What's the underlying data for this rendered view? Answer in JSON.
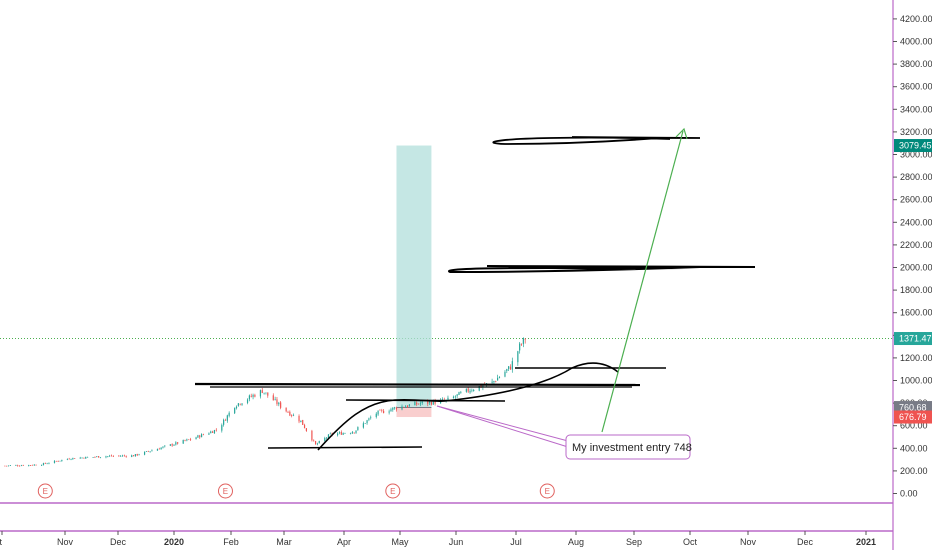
{
  "chart_data": {
    "type": "candlestick",
    "title": "",
    "xlabel": "",
    "ylabel": "",
    "ylim": [
      -100,
      4300
    ],
    "y_ticks": [
      "0.00",
      "200.00",
      "400.00",
      "600.00",
      "800.00",
      "1000.00",
      "1200.00",
      "1400.00",
      "1600.00",
      "1800.00",
      "2000.00",
      "2200.00",
      "2400.00",
      "2600.00",
      "2800.00",
      "3000.00",
      "3200.00",
      "3400.00",
      "3600.00",
      "3800.00",
      "4000.00",
      "4200.00"
    ],
    "x_ticks": [
      {
        "label": "Oct",
        "bold": false
      },
      {
        "label": "Nov",
        "bold": false
      },
      {
        "label": "Dec",
        "bold": false
      },
      {
        "label": "2020",
        "bold": true
      },
      {
        "label": "Feb",
        "bold": false
      },
      {
        "label": "Mar",
        "bold": false
      },
      {
        "label": "Apr",
        "bold": false
      },
      {
        "label": "May",
        "bold": false
      },
      {
        "label": "Jun",
        "bold": false
      },
      {
        "label": "Jul",
        "bold": false
      },
      {
        "label": "Aug",
        "bold": false
      },
      {
        "label": "Sep",
        "bold": false
      },
      {
        "label": "Oct",
        "bold": false
      },
      {
        "label": "Nov",
        "bold": false
      },
      {
        "label": "Dec",
        "bold": false
      },
      {
        "label": "2021",
        "bold": true
      }
    ],
    "price_path": [
      [
        "2019-10-01",
        245
      ],
      [
        "2019-10-20",
        255
      ],
      [
        "2019-11-05",
        310
      ],
      [
        "2019-11-25",
        330
      ],
      [
        "2019-12-10",
        335
      ],
      [
        "2019-12-25",
        405
      ],
      [
        "2020-01-10",
        480
      ],
      [
        "2020-01-25",
        570
      ],
      [
        "2020-02-03",
        780
      ],
      [
        "2020-02-18",
        910
      ],
      [
        "2020-03-01",
        745
      ],
      [
        "2020-03-10",
        640
      ],
      [
        "2020-03-18",
        430
      ],
      [
        "2020-03-26",
        520
      ],
      [
        "2020-04-08",
        550
      ],
      [
        "2020-04-20",
        710
      ],
      [
        "2020-05-01",
        760
      ],
      [
        "2020-05-15",
        800
      ],
      [
        "2020-05-28",
        820
      ],
      [
        "2020-06-10",
        920
      ],
      [
        "2020-06-22",
        980
      ],
      [
        "2020-07-02",
        1120
      ],
      [
        "2020-07-07",
        1300
      ],
      [
        "2020-07-10",
        1371.47
      ]
    ],
    "price_badges": [
      {
        "value": 3079.45,
        "label": "3079.45",
        "color": "#00897b"
      },
      {
        "value": 1371.47,
        "label": "1371.47",
        "color": "#26a69a"
      },
      {
        "value": 760.68,
        "label": "760.68",
        "color": "#787b86"
      },
      {
        "value": 676.79,
        "label": "676.79",
        "color": "#ef5350"
      }
    ],
    "last_price": 1371.47,
    "position": {
      "start": "2020-05-01",
      "end": "2020-05-20",
      "entry": 760.68,
      "target": 3079.45,
      "stop": 676.79,
      "profit_color": "#b2dfdb",
      "loss_color": "#f8c9c9"
    },
    "earnings": [
      "2019-10-23",
      "2020-01-29",
      "2020-04-29",
      "2020-07-22"
    ],
    "earnings_label": "E",
    "annotation": {
      "text": "My investment entry 748",
      "date": "2020-05-20",
      "value": 748
    },
    "colors": {
      "up": "#26a69a",
      "down": "#ef5350",
      "drawing": "#000000",
      "arrow": "#4caf50",
      "separator": "#ba68c8"
    }
  }
}
